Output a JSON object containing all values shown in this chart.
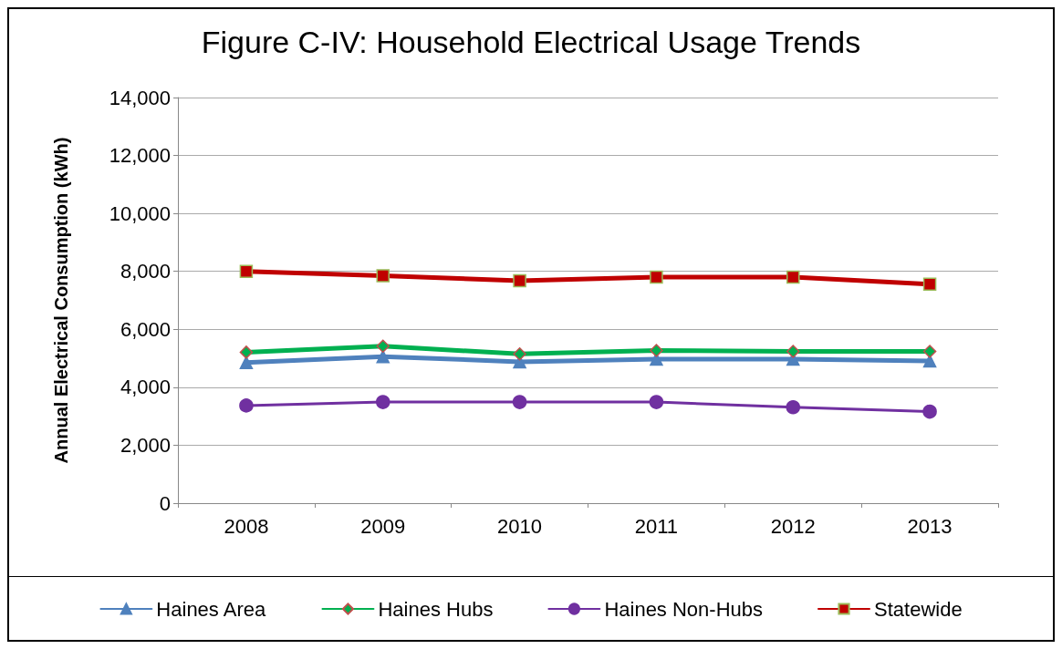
{
  "chart_data": {
    "type": "line",
    "title": "Figure C-IV: Household Electrical Usage Trends",
    "ylabel": "Annual Electrical Consumption (kWh)",
    "categories": [
      "2008",
      "2009",
      "2010",
      "2011",
      "2012",
      "2013"
    ],
    "series": [
      {
        "name": "Haines Area",
        "color": "#4f81bd",
        "marker": "triangle",
        "values": [
          4850,
          5060,
          4880,
          4970,
          4970,
          4910
        ]
      },
      {
        "name": "Haines Hubs",
        "color": "#00b050",
        "marker": "diamond",
        "values": [
          5210,
          5420,
          5150,
          5270,
          5240,
          5240
        ]
      },
      {
        "name": "Haines Non-Hubs",
        "color": "#7030a0",
        "marker": "circle",
        "values": [
          3370,
          3490,
          3490,
          3490,
          3310,
          3160
        ]
      },
      {
        "name": "Statewide",
        "color": "#c00000",
        "marker": "square",
        "values": [
          8000,
          7850,
          7680,
          7800,
          7800,
          7560
        ]
      }
    ],
    "ylim": [
      0,
      14000
    ],
    "yticks": [
      0,
      {
        "value": 2000,
        "label": "2,000"
      },
      {
        "value": 4000,
        "label": "4,000"
      },
      {
        "value": 6000,
        "label": "6,000"
      },
      {
        "value": 8000,
        "label": "8,000"
      },
      {
        "value": 10000,
        "label": "10,000"
      },
      {
        "value": 12000,
        "label": "12,000"
      },
      {
        "value": 14000,
        "label": "14,000"
      }
    ],
    "grid": "y",
    "legend": "bottom"
  }
}
